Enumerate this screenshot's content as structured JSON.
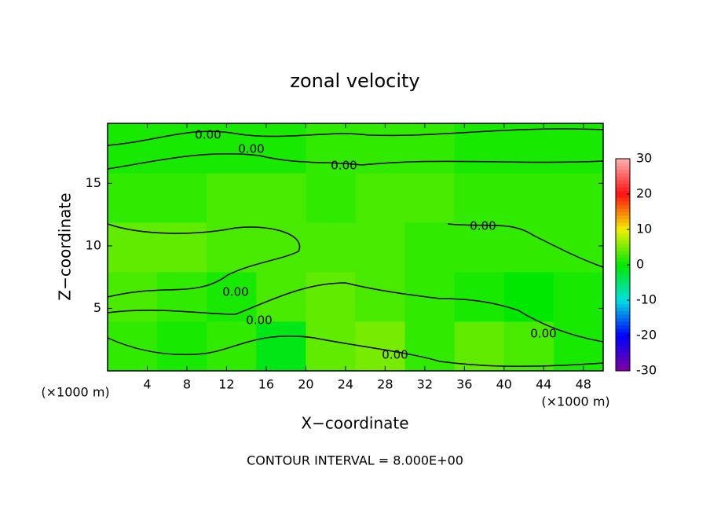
{
  "chart_data": {
    "type": "contour",
    "title": "zonal velocity",
    "xlabel": "X−coordinate",
    "ylabel": "Z−coordinate",
    "x_unit_label": "(×1000 m)",
    "footer": "CONTOUR INTERVAL = 8.000E+00",
    "xlim": [
      0,
      50
    ],
    "xticks": [
      4,
      8,
      12,
      16,
      20,
      24,
      28,
      32,
      36,
      40,
      44,
      48
    ],
    "ylim": [
      0,
      19.8
    ],
    "yticks": [
      5,
      10,
      15
    ],
    "field": [
      [
        2,
        1,
        2,
        -1,
        4,
        5,
        2,
        4,
        3,
        1
      ],
      [
        3,
        2,
        1,
        3,
        4,
        3,
        2,
        1,
        0,
        1
      ],
      [
        4,
        4,
        3,
        3,
        3,
        3,
        2,
        2,
        2,
        2
      ],
      [
        2,
        2,
        3,
        3,
        2,
        3,
        3,
        2,
        2,
        2
      ],
      [
        1,
        1,
        1,
        1,
        2,
        2,
        2,
        1,
        1,
        1
      ]
    ],
    "contour_labels": [
      "0.00",
      "0.00",
      "0.00",
      "0.00",
      "0.00",
      "0.00",
      "0.00",
      "0.00"
    ],
    "colorbar_lim": [
      -30,
      30
    ],
    "colorbar_ticks": [
      -30,
      -20,
      -10,
      0,
      10,
      20,
      30
    ],
    "colormap_colors": [
      "#8000a0",
      "#0000ff",
      "#00e0e0",
      "#00e800",
      "#f0f000",
      "#ff1010",
      "#ffb0b0"
    ]
  }
}
